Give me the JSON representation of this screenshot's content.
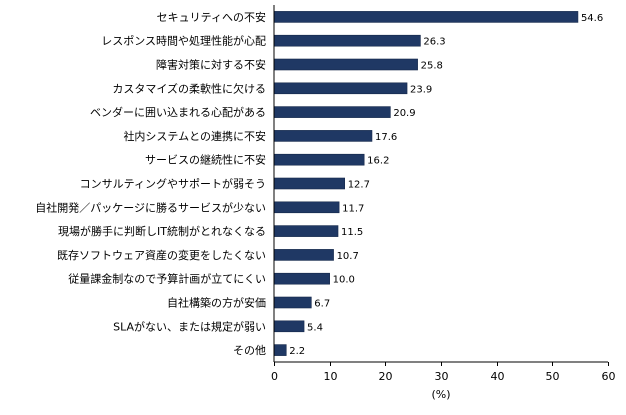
{
  "chart_data": {
    "type": "bar",
    "orientation": "horizontal",
    "categories": [
      "セキュリティへの不安",
      "レスポンス時間や処理性能が心配",
      "障害対策に対する不安",
      "カスタマイズの柔軟性に欠ける",
      "ベンダーに囲い込まれる心配がある",
      "社内システムとの連携に不安",
      "サービスの継続性に不安",
      "コンサルティングやサポートが弱そう",
      "自社開発／パッケージに勝るサービスが少ない",
      "現場が勝手に判断しIT統制がとれなくなる",
      "既存ソフトウェア資産の変更をしたくない",
      "従量課金制なので予算計画が立てにくい",
      "自社構築の方が安価",
      "SLAがない、または規定が弱い",
      "その他"
    ],
    "values": [
      54.6,
      26.3,
      25.8,
      23.9,
      20.9,
      17.6,
      16.2,
      12.7,
      11.7,
      11.5,
      10.7,
      10.0,
      6.7,
      5.4,
      2.2
    ],
    "value_labels": [
      "54.6",
      "26.3",
      "25.8",
      "23.9",
      "20.9",
      "17.6",
      "16.2",
      "12.7",
      "11.7",
      "11.5",
      "10.7",
      "10.0",
      "6.7",
      "5.4",
      "2.2"
    ],
    "xlabel": "(%)",
    "xlim": [
      0,
      60
    ],
    "xticks": [
      "0",
      "10",
      "20",
      "30",
      "40",
      "50",
      "60"
    ],
    "grid": false,
    "bar_color": "#1f3864"
  }
}
